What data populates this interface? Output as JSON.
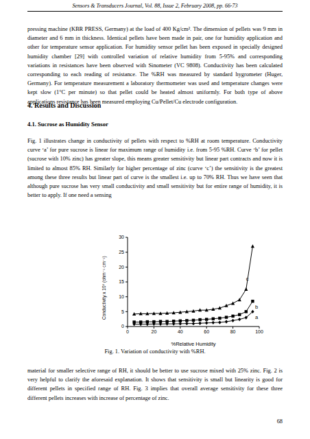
{
  "header": "Sensors & Transducers Journal, Vol. 88, Issue 2, February 2008, pp. 66-73",
  "paragraphs_top": [
    "pressing machine (KBR PRESS, Germany) at the load of 400 Kg/cm². The dimension of pellets was 9 mm in diameter and 6 mm in thickness. Identical pellets have been made in pair, one for humidity application and other for temperature sensor application. For humidity sensor pellet has been exposed in specially designed humidity chamber [29] with controlled variation of relative humidity from 5-95% and corresponding variations in resistances have been observed with Sinometer (VC 9808). Conductivity has been calculated corresponding to each reading of resistance. The %RH was measured by standard hygrometer (Huger, Germany). For temperature measurement a laboratory thermometer was used and temperature changes were kept slow (1°C per minute) so that pellet could be heated almost uniformly. For both type of above applications resistance has been measured employing Cu/Pellet/Cu electrode configuration."
  ],
  "section": "4. Results and Discussion",
  "subsection": "4.1. Sucrose as Humidity Sensor",
  "paragraphs_middle": [
    "Fig. 1 illustrates change in conductivity of pellets with respect to %RH at room temperature. Conductivity curve ‘a’ for pure sucrose is linear for maximum range of humidity i.e. from 5-95 %RH. Curve ‘b’ for pellet (sucrose with 10% zinc) has greater slope, this means greater sensitivity but linear part contracts and now it is limited to almost 85% RH. Similarly for higher percentage of zinc (curve ‘c’) the sensitivity is the greatest among these three results but linear part of curve is the smallest i.e. up to 70% RH. Thus we have seen that although pure sucrose has very small conductivity and small sensitivity but for entire range of humidity, it is better to apply. If one need a sensing"
  ],
  "figure_caption": "Fig. 1. Variation of conductivity with %RH.",
  "paragraphs_bottom": [
    "material for smaller selective range of RH, it should be better to use sucrose mixed with 25% zinc. Fig. 2 is very helpful to clarify the aforesaid explanation. It shows that sensitivity is small but linearity is good for different pellets in specified range of RH. Fig. 3 implies that overall average sensitivity for these three different pellets increases with increase of percentage of zinc."
  ],
  "page_number": "68",
  "chart_data": {
    "type": "line",
    "x_label": "%Relative Humidity",
    "y_label": "Conductivity x 10⁶ (ohm⁻¹ cm⁻¹)",
    "x": [
      5,
      10,
      15,
      20,
      25,
      30,
      35,
      40,
      45,
      50,
      55,
      60,
      65,
      70,
      75,
      80,
      85,
      90,
      95
    ],
    "series": [
      {
        "name": "a",
        "color": "#000000",
        "marker": "diamond",
        "values": [
          0.8,
          0.8,
          0.8,
          0.85,
          0.85,
          0.9,
          0.9,
          0.95,
          1.0,
          1.0,
          1.1,
          1.2,
          1.3,
          1.4,
          1.6,
          2.0,
          2.4,
          3.0,
          5.0
        ]
      },
      {
        "name": "b",
        "color": "#000000",
        "marker": "square",
        "values": [
          1.5,
          1.5,
          1.6,
          1.6,
          1.7,
          1.7,
          1.8,
          1.9,
          2.0,
          2.1,
          2.3,
          2.4,
          2.6,
          2.8,
          3.1,
          3.5,
          4.0,
          5.0,
          8.5
        ]
      },
      {
        "name": "c",
        "color": "#000000",
        "marker": "triangle",
        "values": [
          4.2,
          4.3,
          4.3,
          4.4,
          4.4,
          4.5,
          4.6,
          4.8,
          5.0,
          5.2,
          5.5,
          5.5,
          5.8,
          6.2,
          7.0,
          7.8,
          9.0,
          12.5,
          27.0
        ]
      }
    ],
    "annotations": [
      {
        "text": "a",
        "x": 98,
        "y": 3.2
      },
      {
        "text": "b",
        "x": 98,
        "y": 6.5
      },
      {
        "text": "c",
        "x": 91,
        "y": 16
      }
    ],
    "xlim": [
      0,
      100
    ],
    "xticks": [
      0,
      20,
      40,
      60,
      80,
      100
    ],
    "ylim": [
      0,
      30
    ],
    "yticks": [
      0,
      5,
      10,
      15,
      20,
      25,
      30
    ],
    "grid": false,
    "legend": "none"
  }
}
